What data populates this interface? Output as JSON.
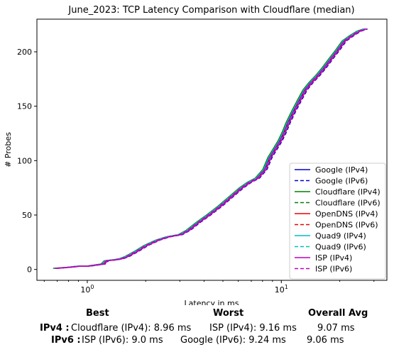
{
  "chart_data": {
    "type": "line",
    "title": "June_2023: TCP Latency Comparison with Cloudflare (median)",
    "xlabel": "Latency in ms",
    "ylabel": "# Probes",
    "xscale": "log",
    "xlim": [
      0.55,
      35
    ],
    "ylim": [
      -10,
      230
    ],
    "xticks": [
      {
        "value": 1,
        "base": "10",
        "exp": "0"
      },
      {
        "value": 10,
        "base": "10",
        "exp": "1"
      }
    ],
    "yticks": [
      0,
      50,
      100,
      150,
      200
    ],
    "grid": false,
    "legend_position": "lower-right",
    "base_curve": {
      "x": [
        0.68,
        0.8,
        0.9,
        1.0,
        1.1,
        1.2,
        1.25,
        1.4,
        1.5,
        1.6,
        1.8,
        2.0,
        2.3,
        2.6,
        3.0,
        3.3,
        3.7,
        4.2,
        4.8,
        5.5,
        6.2,
        6.8,
        7.5,
        8.2,
        8.7,
        9.2,
        9.8,
        10.3,
        10.8,
        11.5,
        12.3,
        13.2,
        14.2,
        15.3,
        16.5,
        18.0,
        19.5,
        21.0,
        23.0,
        25.0,
        27.0
      ],
      "y": [
        1,
        2,
        3,
        3,
        4,
        5,
        8,
        9,
        10,
        12,
        17,
        22,
        27,
        30,
        32,
        36,
        43,
        50,
        58,
        67,
        75,
        80,
        84,
        92,
        103,
        110,
        118,
        126,
        135,
        145,
        155,
        165,
        172,
        178,
        185,
        194,
        202,
        210,
        215,
        219,
        221
      ]
    },
    "series": [
      {
        "name": "Google (IPv4)",
        "color": "#0000cc",
        "style": "solid",
        "xshift": 1.0
      },
      {
        "name": "Google (IPv6)",
        "color": "#0000cc",
        "style": "dashed",
        "xshift": 1.03
      },
      {
        "name": "Cloudflare (IPv4)",
        "color": "#008000",
        "style": "solid",
        "xshift": 0.98
      },
      {
        "name": "Cloudflare (IPv6)",
        "color": "#008000",
        "style": "dashed",
        "xshift": 0.99
      },
      {
        "name": "OpenDNS (IPv4)",
        "color": "#ee0000",
        "style": "solid",
        "xshift": 1.01
      },
      {
        "name": "OpenDNS (IPv6)",
        "color": "#ee0000",
        "style": "dashed",
        "xshift": 1.02
      },
      {
        "name": "Quad9 (IPv4)",
        "color": "#00bfbf",
        "style": "solid",
        "xshift": 0.99
      },
      {
        "name": "Quad9 (IPv6)",
        "color": "#00bfbf",
        "style": "dashed",
        "xshift": 1.01
      },
      {
        "name": "ISP (IPv4)",
        "color": "#bf00bf",
        "style": "solid",
        "xshift": 1.02
      },
      {
        "name": "ISP (IPv6)",
        "color": "#bf00bf",
        "style": "dashed",
        "xshift": 1.0
      }
    ]
  },
  "summary": {
    "headers": {
      "best": "Best",
      "worst": "Worst",
      "avg": "Overall Avg"
    },
    "rows": [
      {
        "label": "IPv4 :",
        "best": "Cloudflare (IPv4): 8.96 ms",
        "worst": "ISP (IPv4): 9.16 ms",
        "avg": "9.07 ms"
      },
      {
        "label": "IPv6 :",
        "best": "ISP (IPv6): 9.0 ms",
        "worst": "Google (IPv6): 9.24 ms",
        "avg": "9.06 ms"
      }
    ]
  }
}
